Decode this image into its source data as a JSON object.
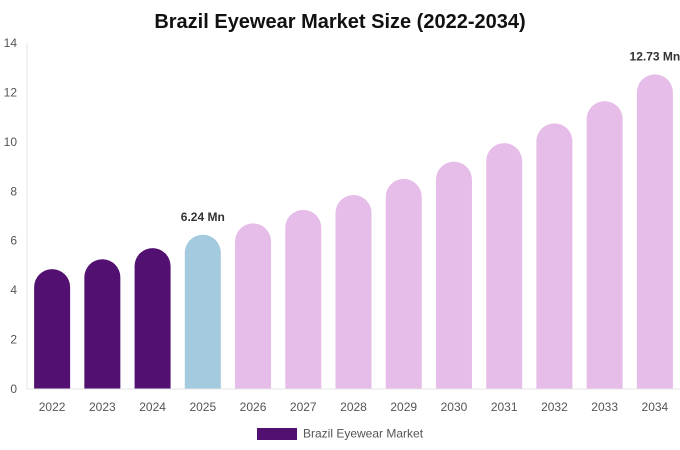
{
  "chart_data": {
    "type": "bar",
    "title": "Brazil Eyewear Market Size (2022-2034)",
    "categories": [
      "2022",
      "2023",
      "2024",
      "2025",
      "2026",
      "2027",
      "2028",
      "2029",
      "2030",
      "2031",
      "2032",
      "2033",
      "2034"
    ],
    "series": [
      {
        "name": "Brazil Eyewear Market",
        "values": [
          4.85,
          5.25,
          5.7,
          6.24,
          6.7,
          7.25,
          7.85,
          8.5,
          9.2,
          9.95,
          10.75,
          11.65,
          12.73
        ]
      }
    ],
    "bar_colors": [
      "#521170",
      "#521170",
      "#521170",
      "#a3cadf",
      "#e6bce8",
      "#e6bce8",
      "#e6bce8",
      "#e6bce8",
      "#e6bce8",
      "#e6bce8",
      "#e6bce8",
      "#e6bce8",
      "#e6bce8"
    ],
    "data_labels": [
      {
        "category": "2025",
        "text": "6.24 Mn"
      },
      {
        "category": "2034",
        "text": "12.73 Mn"
      }
    ],
    "ylim": [
      0,
      14
    ],
    "yticks": [
      0,
      2,
      4,
      6,
      8,
      10,
      12,
      14
    ],
    "grid": false,
    "legend": {
      "position": "bottom",
      "label": "Brazil Eyewear Market",
      "color": "#521170"
    }
  }
}
